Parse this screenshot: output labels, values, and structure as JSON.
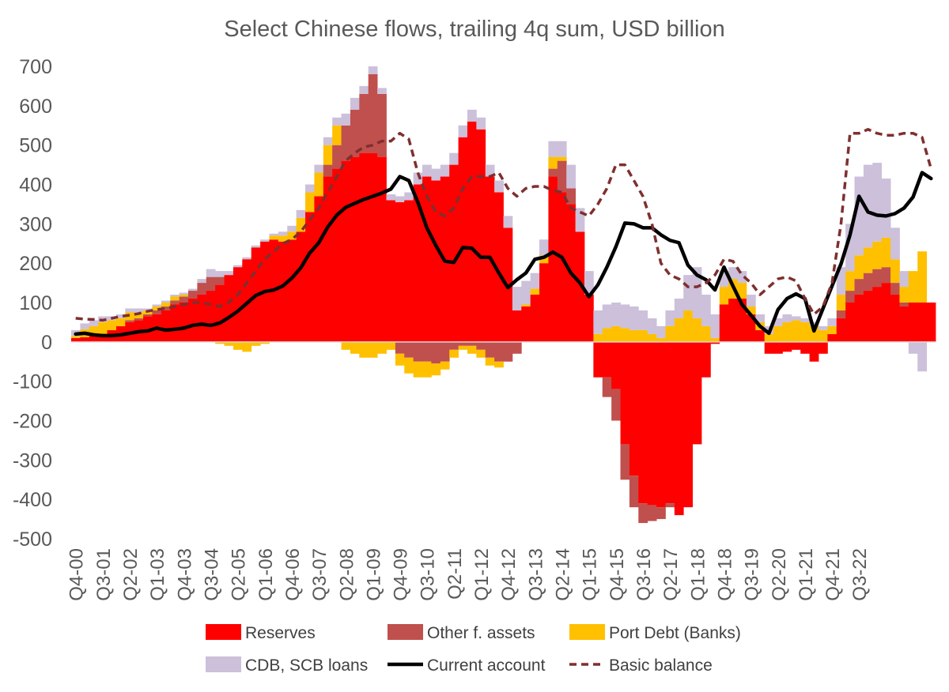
{
  "chart_data": {
    "type": "bar",
    "title": "Select Chinese flows, trailing 4q sum, USD billion",
    "xlabel": "",
    "ylabel": "",
    "ylim": [
      -500,
      700
    ],
    "yticks": [
      700,
      600,
      500,
      400,
      300,
      200,
      100,
      0,
      -100,
      -200,
      -300,
      -400,
      -500
    ],
    "stacked": true,
    "grid": false,
    "legend_position": "bottom",
    "x_start": "Q4-00",
    "x_end": "Q4-22",
    "x_tick_labels": [
      "Q4-00",
      "Q3-01",
      "Q2-02",
      "Q1-03",
      "Q4-03",
      "Q3-04",
      "Q2-05",
      "Q1-06",
      "Q4-06",
      "Q3-07",
      "Q2-08",
      "Q1-09",
      "Q4-09",
      "Q3-10",
      "Q2-11",
      "Q1-12",
      "Q4-12",
      "Q3-13",
      "Q2-14",
      "Q1-15",
      "Q4-15",
      "Q3-16",
      "Q2-17",
      "Q1-18",
      "Q4-18",
      "Q3-19",
      "Q2-20",
      "Q1-21",
      "Q4-21",
      "Q3-22"
    ],
    "series": [
      {
        "name": "Reserves",
        "kind": "bar",
        "color": "#ff0000",
        "values": [
          10,
          12,
          15,
          20,
          30,
          40,
          50,
          55,
          65,
          70,
          80,
          95,
          100,
          110,
          120,
          130,
          145,
          170,
          190,
          210,
          240,
          255,
          260,
          255,
          260,
          280,
          330,
          370,
          420,
          440,
          460,
          470,
          480,
          480,
          470,
          360,
          355,
          360,
          400,
          420,
          410,
          420,
          450,
          520,
          560,
          540,
          420,
          380,
          290,
          80,
          90,
          120,
          200,
          420,
          380,
          350,
          280,
          120,
          -90,
          -90,
          -120,
          -260,
          -340,
          -410,
          -415,
          -420,
          -410,
          -440,
          -420,
          -260,
          -90,
          -5,
          95,
          110,
          110,
          70,
          30,
          -30,
          -30,
          -25,
          -20,
          -30,
          -50,
          -30,
          20,
          60,
          100,
          120,
          130,
          140,
          150,
          120,
          90,
          100,
          100,
          100
        ],
        "values_neg_other": []
      },
      {
        "name": "Other f. assets",
        "kind": "bar",
        "color": "#c0504d",
        "values": [
          0,
          0,
          0,
          0,
          0,
          0,
          5,
          5,
          5,
          10,
          10,
          10,
          15,
          20,
          30,
          35,
          20,
          0,
          0,
          0,
          0,
          0,
          0,
          0,
          0,
          0,
          0,
          0,
          30,
          60,
          90,
          120,
          150,
          200,
          160,
          0,
          -30,
          -40,
          -50,
          -50,
          -55,
          -50,
          -20,
          -10,
          -10,
          -20,
          -40,
          -50,
          -50,
          -30,
          0,
          0,
          0,
          20,
          80,
          40,
          0,
          0,
          0,
          -50,
          -80,
          -90,
          -80,
          -50,
          -40,
          -30,
          -10,
          0,
          0,
          0,
          0,
          0,
          0,
          0,
          0,
          0,
          0,
          0,
          0,
          0,
          0,
          0,
          0,
          0,
          0,
          20,
          30,
          40,
          45,
          45,
          40,
          30,
          10,
          0,
          0,
          0
        ],
        "note": "stacked above reserves when positive, below when negative"
      },
      {
        "name": "Port Debt (Banks)",
        "kind": "bar",
        "color": "#ffc000",
        "values": [
          5,
          20,
          25,
          30,
          25,
          20,
          20,
          15,
          10,
          10,
          10,
          10,
          5,
          0,
          0,
          0,
          -5,
          -10,
          -20,
          -25,
          -10,
          -5,
          10,
          15,
          20,
          35,
          50,
          60,
          50,
          50,
          -20,
          -30,
          -40,
          -40,
          -30,
          -20,
          -30,
          -40,
          -40,
          -40,
          -30,
          -20,
          -20,
          -10,
          -20,
          -20,
          -20,
          -15,
          0,
          0,
          5,
          15,
          20,
          30,
          10,
          0,
          0,
          0,
          20,
          35,
          40,
          35,
          30,
          30,
          20,
          10,
          40,
          60,
          80,
          60,
          40,
          10,
          45,
          50,
          40,
          20,
          20,
          20,
          40,
          50,
          55,
          50,
          40,
          30,
          20,
          40,
          50,
          60,
          65,
          70,
          75,
          60,
          40,
          80,
          130,
          0
        ],
        "note": "negative values hang below zero"
      },
      {
        "name": "CDB, SCB loans",
        "kind": "bar",
        "color": "#ccc0da",
        "values": [
          15,
          15,
          15,
          15,
          10,
          10,
          10,
          10,
          5,
          5,
          5,
          5,
          5,
          5,
          10,
          20,
          15,
          10,
          5,
          5,
          5,
          5,
          5,
          10,
          15,
          20,
          20,
          20,
          20,
          20,
          30,
          30,
          20,
          20,
          15,
          15,
          15,
          20,
          30,
          30,
          30,
          30,
          30,
          30,
          30,
          30,
          30,
          30,
          30,
          60,
          60,
          40,
          40,
          40,
          40,
          60,
          60,
          60,
          60,
          60,
          60,
          60,
          60,
          50,
          40,
          30,
          40,
          50,
          90,
          130,
          80,
          60,
          40,
          30,
          30,
          30,
          20,
          20,
          20,
          20,
          10,
          10,
          10,
          10,
          20,
          70,
          120,
          200,
          210,
          200,
          150,
          80,
          40,
          -30,
          -75,
          0
        ],
        "note": "stacked on outside of other positive/negative series"
      },
      {
        "name": "Current account",
        "kind": "line",
        "color": "#000000",
        "style": "solid",
        "values": [
          20,
          22,
          18,
          16,
          16,
          18,
          22,
          26,
          28,
          35,
          30,
          32,
          35,
          42,
          45,
          42,
          48,
          62,
          78,
          98,
          118,
          128,
          132,
          142,
          162,
          188,
          226,
          252,
          292,
          322,
          342,
          352,
          362,
          370,
          378,
          388,
          420,
          410,
          355,
          290,
          245,
          205,
          202,
          240,
          238,
          215,
          215,
          175,
          138,
          158,
          175,
          210,
          215,
          228,
          215,
          175,
          150,
          115,
          145,
          190,
          242,
          302,
          300,
          290,
          290,
          272,
          258,
          252,
          195,
          170,
          158,
          132,
          190,
          142,
          95,
          68,
          40,
          22,
          82,
          110,
          122,
          110,
          28,
          85,
          142,
          198,
          272,
          370,
          330,
          322,
          320,
          326,
          340,
          368,
          430,
          415
        ]
      },
      {
        "name": "Basic balance",
        "kind": "line",
        "color": "#7f2f2f",
        "style": "dashed",
        "values": [
          60,
          58,
          57,
          55,
          60,
          65,
          68,
          72,
          78,
          82,
          85,
          90,
          95,
          100,
          100,
          95,
          90,
          100,
          120,
          150,
          180,
          210,
          230,
          250,
          260,
          280,
          310,
          340,
          380,
          420,
          460,
          480,
          495,
          500,
          510,
          510,
          530,
          515,
          430,
          370,
          330,
          320,
          340,
          390,
          420,
          420,
          420,
          430,
          390,
          370,
          390,
          395,
          395,
          385,
          380,
          340,
          330,
          320,
          350,
          390,
          450,
          450,
          410,
          370,
          300,
          200,
          170,
          160,
          140,
          140,
          150,
          170,
          210,
          205,
          170,
          150,
          120,
          140,
          160,
          165,
          155,
          110,
          70,
          90,
          150,
          300,
          530,
          530,
          540,
          530,
          525,
          525,
          530,
          530,
          520,
          440
        ]
      }
    ]
  }
}
